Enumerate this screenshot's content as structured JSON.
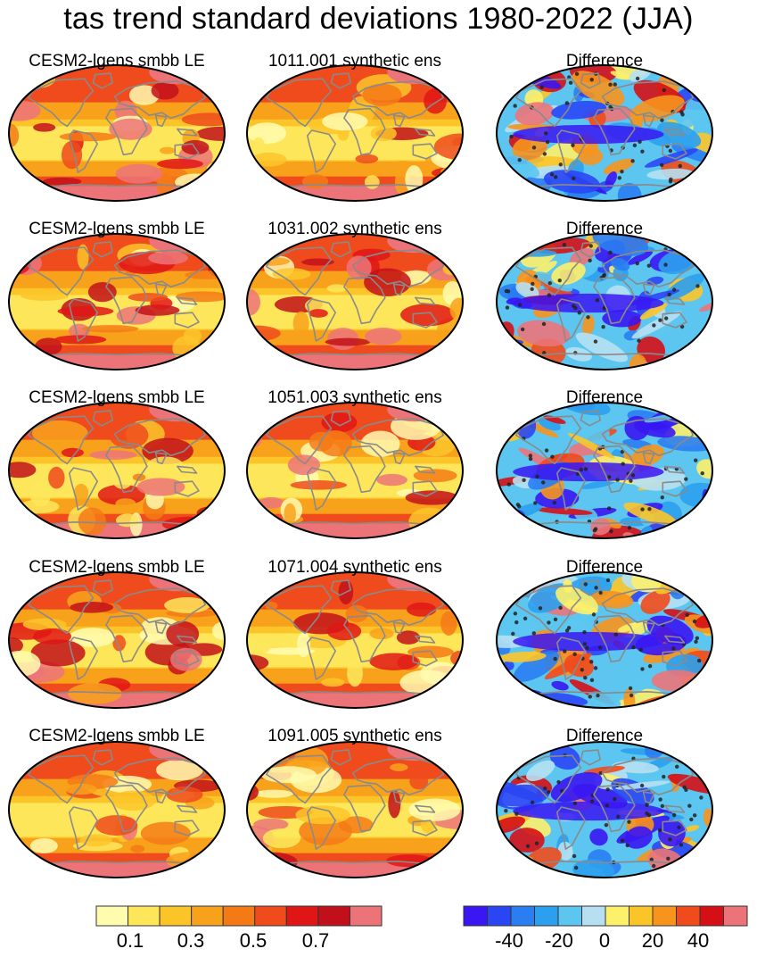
{
  "title": "tas trend standard deviations 1980-2022 (JJA)",
  "rows": [
    {
      "left": "CESM2-lgens smbb LE",
      "middle": "1011.001 synthetic ens",
      "right": "Difference"
    },
    {
      "left": "CESM2-lgens smbb LE",
      "middle": "1031.002 synthetic ens",
      "right": "Difference"
    },
    {
      "left": "CESM2-lgens smbb LE",
      "middle": "1051.003 synthetic ens",
      "right": "Difference"
    },
    {
      "left": "CESM2-lgens smbb LE",
      "middle": "1071.004 synthetic ens",
      "right": "Difference"
    },
    {
      "left": "CESM2-lgens smbb LE",
      "middle": "1091.005 synthetic ens",
      "right": "Difference"
    }
  ],
  "colorbars": {
    "std": {
      "colors": [
        "#fffcb0",
        "#fde65a",
        "#fbc52a",
        "#f8a21c",
        "#f47a16",
        "#ef4b1c",
        "#e01616",
        "#c2101a",
        "#ec7479"
      ],
      "tick_labels": [
        "0.1",
        "0.3",
        "0.5",
        "0.7"
      ]
    },
    "diff": {
      "colors": [
        "#3a16f2",
        "#2a46f4",
        "#2a7ef2",
        "#2ca0ee",
        "#5cc6f0",
        "#b6e0f2",
        "#fdf06a",
        "#fbc52a",
        "#f7941d",
        "#ef4b1c",
        "#d50f16",
        "#ec7479"
      ],
      "tick_labels": [
        "-40",
        "-20",
        "0",
        "20",
        "40"
      ]
    }
  },
  "chart_data": [
    {
      "type": "heatmap",
      "title": "tas trend standard deviations 1980-2022 (JJA)",
      "panels": [
        [
          "CESM2-lgens smbb LE",
          "1011.001 synthetic ens",
          "Difference"
        ],
        [
          "CESM2-lgens smbb LE",
          "1031.002 synthetic ens",
          "Difference"
        ],
        [
          "CESM2-lgens smbb LE",
          "1051.003 synthetic ens",
          "Difference"
        ],
        [
          "CESM2-lgens smbb LE",
          "1071.004 synthetic ens",
          "Difference"
        ],
        [
          "CESM2-lgens smbb LE",
          "1091.005 synthetic ens",
          "Difference"
        ]
      ],
      "std_colorbar": {
        "levels": [
          0.1,
          0.2,
          0.3,
          0.4,
          0.5,
          0.6,
          0.7,
          0.8
        ],
        "tick_values": [
          0.1,
          0.3,
          0.5,
          0.7
        ]
      },
      "diff_colorbar": {
        "levels": [
          -50,
          -40,
          -30,
          -20,
          -10,
          0,
          10,
          20,
          30,
          40,
          50
        ],
        "tick_values": [
          -40,
          -20,
          0,
          20,
          40
        ]
      }
    }
  ]
}
